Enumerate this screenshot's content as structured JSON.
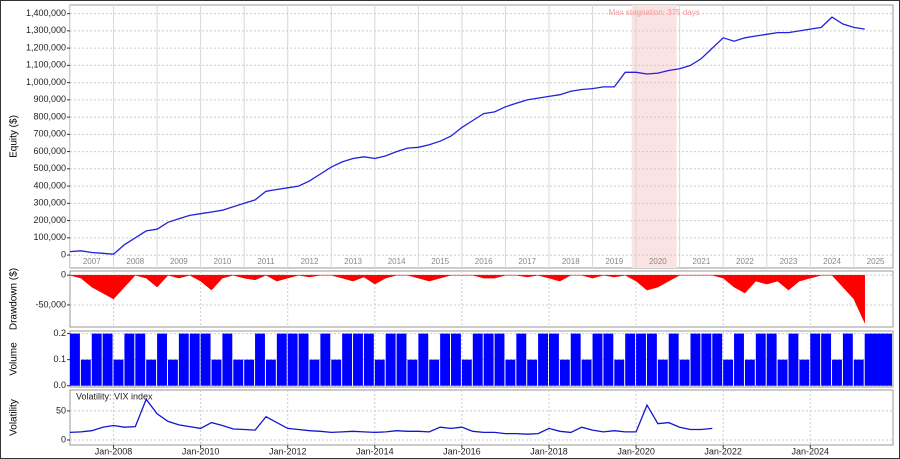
{
  "chart_data": [
    {
      "type": "line",
      "y_label": "Equity ($)",
      "color": "#2222dd",
      "x": [
        2007,
        2007.25,
        2007.5,
        2007.75,
        2008,
        2008.25,
        2008.5,
        2008.75,
        2009,
        2009.25,
        2009.5,
        2009.75,
        2010,
        2010.25,
        2010.5,
        2010.75,
        2011,
        2011.25,
        2011.5,
        2011.75,
        2012,
        2012.25,
        2012.5,
        2012.75,
        2013,
        2013.25,
        2013.5,
        2013.75,
        2014,
        2014.25,
        2014.5,
        2014.75,
        2015,
        2015.25,
        2015.5,
        2015.75,
        2016,
        2016.25,
        2016.5,
        2016.75,
        2017,
        2017.25,
        2017.5,
        2017.75,
        2018,
        2018.25,
        2018.5,
        2018.75,
        2019,
        2019.25,
        2019.5,
        2019.75,
        2020,
        2020.25,
        2020.5,
        2020.75,
        2021,
        2021.25,
        2021.5,
        2021.75,
        2022,
        2022.25,
        2022.5,
        2022.75,
        2023,
        2023.25,
        2023.5,
        2023.75,
        2024,
        2024.25,
        2024.5,
        2024.75,
        2025,
        2025.25
      ],
      "values": [
        20000,
        25000,
        15000,
        10000,
        5000,
        60000,
        100000,
        140000,
        150000,
        190000,
        210000,
        230000,
        240000,
        250000,
        260000,
        280000,
        300000,
        320000,
        370000,
        380000,
        390000,
        400000,
        430000,
        470000,
        510000,
        540000,
        560000,
        570000,
        560000,
        575000,
        600000,
        620000,
        625000,
        640000,
        660000,
        690000,
        740000,
        780000,
        820000,
        830000,
        860000,
        880000,
        900000,
        910000,
        920000,
        930000,
        950000,
        960000,
        965000,
        975000,
        975000,
        1060000,
        1060000,
        1050000,
        1055000,
        1070000,
        1080000,
        1100000,
        1140000,
        1200000,
        1260000,
        1240000,
        1260000,
        1270000,
        1280000,
        1290000,
        1290000,
        1300000,
        1310000,
        1320000,
        1380000,
        1340000,
        1320000,
        1310000
      ],
      "xlim": [
        2007,
        2025.9
      ],
      "ylim": [
        -75000,
        1450000
      ],
      "yticks": [
        {
          "value": 0,
          "label": "0"
        },
        {
          "value": 100000,
          "label": "100,000"
        },
        {
          "value": 200000,
          "label": "200,000"
        },
        {
          "value": 300000,
          "label": "300,000"
        },
        {
          "value": 400000,
          "label": "400,000"
        },
        {
          "value": 500000,
          "label": "500,000"
        },
        {
          "value": 600000,
          "label": "600,000"
        },
        {
          "value": 700000,
          "label": "700,000"
        },
        {
          "value": 800000,
          "label": "800,000"
        },
        {
          "value": 900000,
          "label": "900,000"
        },
        {
          "value": 1000000,
          "label": "1,000,000"
        },
        {
          "value": 1100000,
          "label": "1,100,000"
        },
        {
          "value": 1200000,
          "label": "1,200,000"
        },
        {
          "value": 1300000,
          "label": "1,300,000"
        },
        {
          "value": 1400000,
          "label": "1,400,000"
        }
      ],
      "year_labels": [
        2007,
        2008,
        2009,
        2010,
        2011,
        2012,
        2013,
        2014,
        2015,
        2016,
        2017,
        2018,
        2019,
        2020,
        2021,
        2022,
        2023,
        2024,
        2025
      ],
      "annotations": [
        {
          "text": "Max stagnation: 375 days",
          "x": [
            2019.9,
            2020.93
          ]
        }
      ]
    },
    {
      "type": "area",
      "y_label": "Drawdown ($)",
      "color": "#ff0000",
      "x": [
        2007,
        2007.25,
        2007.5,
        2007.75,
        2008,
        2008.25,
        2008.5,
        2008.75,
        2009,
        2009.25,
        2009.5,
        2009.75,
        2010,
        2010.25,
        2010.5,
        2010.75,
        2011,
        2011.25,
        2011.5,
        2011.75,
        2012,
        2012.25,
        2012.5,
        2012.75,
        2013,
        2013.25,
        2013.5,
        2013.75,
        2014,
        2014.25,
        2014.5,
        2014.75,
        2015,
        2015.25,
        2015.5,
        2015.75,
        2016,
        2016.25,
        2016.5,
        2016.75,
        2017,
        2017.25,
        2017.5,
        2017.75,
        2018,
        2018.25,
        2018.5,
        2018.75,
        2019,
        2019.25,
        2019.5,
        2019.75,
        2020,
        2020.25,
        2020.5,
        2020.75,
        2021,
        2021.25,
        2021.5,
        2021.75,
        2022,
        2022.25,
        2022.5,
        2022.75,
        2023,
        2023.25,
        2023.5,
        2023.75,
        2024,
        2024.25,
        2024.5,
        2024.75,
        2025,
        2025.25
      ],
      "values": [
        0,
        -5000,
        -20000,
        -30000,
        -40000,
        -20000,
        0,
        -5000,
        -20000,
        0,
        -5000,
        0,
        -10000,
        -25000,
        -5000,
        0,
        -5000,
        -8000,
        0,
        -10000,
        -5000,
        0,
        -3000,
        0,
        0,
        -5000,
        -10000,
        -3000,
        -15000,
        -5000,
        0,
        0,
        -5000,
        -10000,
        -5000,
        0,
        0,
        0,
        -5000,
        -5000,
        0,
        0,
        -3000,
        0,
        -5000,
        -10000,
        0,
        0,
        -5000,
        0,
        -3000,
        0,
        -10000,
        -25000,
        -20000,
        -10000,
        0,
        0,
        0,
        0,
        -5000,
        -20000,
        -30000,
        -10000,
        -15000,
        -10000,
        -25000,
        -10000,
        -5000,
        0,
        0,
        -20000,
        -40000,
        -80000
      ],
      "xlim": [
        2007,
        2025.9
      ],
      "ylim": [
        -87000,
        7000
      ],
      "yticks": [
        {
          "value": -50000,
          "label": "-50,000"
        },
        0
      ]
    },
    {
      "type": "bar",
      "y_label": "Volume",
      "color": "#0000ff",
      "x": [
        2007,
        2007.25,
        2007.5,
        2007.75,
        2008,
        2008.25,
        2008.5,
        2008.75,
        2009,
        2009.25,
        2009.5,
        2009.75,
        2010,
        2010.25,
        2010.5,
        2010.75,
        2011,
        2011.25,
        2011.5,
        2011.75,
        2012,
        2012.25,
        2012.5,
        2012.75,
        2013,
        2013.25,
        2013.5,
        2013.75,
        2014,
        2014.25,
        2014.5,
        2014.75,
        2015,
        2015.25,
        2015.5,
        2015.75,
        2016,
        2016.25,
        2016.5,
        2016.75,
        2017,
        2017.25,
        2017.5,
        2017.75,
        2018,
        2018.25,
        2018.5,
        2018.75,
        2019,
        2019.25,
        2019.5,
        2019.75,
        2020,
        2020.25,
        2020.5,
        2020.75,
        2021,
        2021.25,
        2021.5,
        2021.75,
        2022,
        2022.25,
        2022.5,
        2022.75,
        2023,
        2023.25,
        2023.5,
        2023.75,
        2024,
        2024.25,
        2024.5,
        2024.75,
        2025,
        2025.25
      ],
      "values": [
        0.2,
        0.1,
        0.2,
        0.2,
        0.1,
        0.2,
        0.2,
        0.1,
        0.2,
        0.1,
        0.2,
        0.2,
        0.2,
        0.1,
        0.2,
        0.1,
        0.1,
        0.2,
        0.1,
        0.2,
        0.2,
        0.2,
        0.1,
        0.2,
        0.1,
        0.2,
        0.2,
        0.2,
        0.1,
        0.2,
        0.2,
        0.1,
        0.2,
        0.1,
        0.2,
        0.2,
        0.1,
        0.2,
        0.2,
        0.2,
        0.1,
        0.2,
        0.1,
        0.2,
        0.2,
        0.1,
        0.2,
        0.1,
        0.2,
        0.2,
        0.1,
        0.2,
        0.2,
        0.2,
        0.1,
        0.2,
        0.1,
        0.2,
        0.2,
        0.2,
        0.1,
        0.2,
        0.1,
        0.2,
        0.2,
        0.1,
        0.2,
        0.1,
        0.2,
        0.2,
        0.1,
        0.2,
        0.1,
        0.2
      ],
      "xlim": [
        2007,
        2025.9
      ],
      "ylim": [
        -0.005,
        0.21
      ],
      "yticks": [
        {
          "value": 0,
          "label": "0.0"
        },
        0.1,
        0.2
      ]
    },
    {
      "type": "line",
      "y_label": "Volatility",
      "series": [
        {
          "name": "Volatility: VIX index",
          "color": "#1515d0",
          "values": [
            13,
            14,
            16,
            22,
            25,
            22,
            23,
            70,
            45,
            32,
            26,
            23,
            20,
            30,
            25,
            19,
            18,
            17,
            40,
            30,
            20,
            18,
            16,
            15,
            13,
            14,
            15,
            14,
            13,
            14,
            16,
            15,
            15,
            14,
            22,
            20,
            22,
            15,
            13,
            13,
            11,
            11,
            10,
            11,
            20,
            15,
            13,
            22,
            17,
            14,
            16,
            14,
            14,
            60,
            28,
            30,
            22,
            18,
            18,
            20
          ]
        }
      ],
      "x": [
        2007,
        2007.25,
        2007.5,
        2007.75,
        2008,
        2008.25,
        2008.5,
        2008.75,
        2009,
        2009.25,
        2009.5,
        2009.75,
        2010,
        2010.25,
        2010.5,
        2010.75,
        2011,
        2011.25,
        2011.5,
        2011.75,
        2012,
        2012.25,
        2012.5,
        2012.75,
        2013,
        2013.25,
        2013.5,
        2013.75,
        2014,
        2014.25,
        2014.5,
        2014.75,
        2015,
        2015.25,
        2015.5,
        2015.75,
        2016,
        2016.25,
        2016.5,
        2016.75,
        2017,
        2017.25,
        2017.5,
        2017.75,
        2018,
        2018.25,
        2018.5,
        2018.75,
        2019,
        2019.25,
        2019.5,
        2019.75,
        2020,
        2020.25,
        2020.5,
        2020.75,
        2021,
        2021.25,
        2021.5,
        2021.75
      ],
      "xlim": [
        2007,
        2025.9
      ],
      "ylim": [
        -8.6,
        86
      ],
      "yticks": [
        0,
        50
      ],
      "xticks": [
        {
          "value": 2008,
          "label": "Jan-2008"
        },
        {
          "value": 2010,
          "label": "Jan-2010"
        },
        {
          "value": 2012,
          "label": "Jan-2012"
        },
        {
          "value": 2014,
          "label": "Jan-2014"
        },
        {
          "value": 2016,
          "label": "Jan-2016"
        },
        {
          "value": 2018,
          "label": "Jan-2018"
        },
        {
          "value": 2020,
          "label": "Jan-2020"
        },
        {
          "value": 2022,
          "label": "Jan-2022"
        },
        {
          "value": 2024,
          "label": "Jan-2024"
        }
      ]
    }
  ]
}
